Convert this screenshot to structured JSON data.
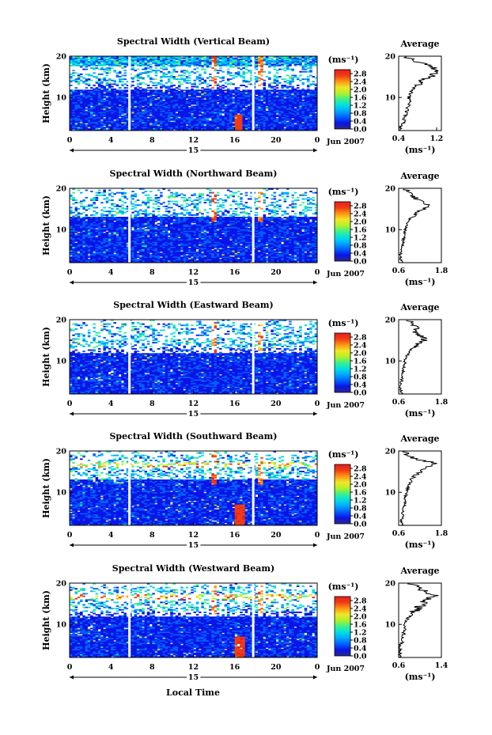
{
  "common": {
    "ylabel": "Height (km)",
    "xlabel": "Local Time",
    "date_label": "Jun 2007",
    "day_label": "15",
    "cbar_unit": "(ms⁻¹)",
    "avg_title": "Average",
    "avg_unit": "(ms⁻¹)",
    "x_ticks": [
      "0",
      "4",
      "8",
      "12",
      "16",
      "20",
      "0"
    ],
    "x_tick_values": [
      0,
      4,
      8,
      12,
      16,
      20,
      24
    ],
    "y_ticks": [
      "20",
      "10"
    ],
    "y_tick_values": [
      20,
      10
    ],
    "cbar_ticks": [
      "2.8",
      "2.4",
      "2.0",
      "1.6",
      "1.2",
      "0.8",
      "0.4",
      "0.0"
    ],
    "cbar_tick_values": [
      2.8,
      2.4,
      2.0,
      1.6,
      1.2,
      0.8,
      0.4,
      0.0
    ],
    "colormap": [
      "#2a2a8a",
      "#0a14e6",
      "#0060ff",
      "#00a8ff",
      "#00e0e0",
      "#3cf08c",
      "#b4f028",
      "#f0e628",
      "#ff9614",
      "#f03c14",
      "#e61e1e"
    ]
  },
  "chart_data": [
    {
      "type": "heatmap",
      "title": "Spectral Width (Vertical Beam)",
      "xlabel": "Local Time",
      "ylabel": "Height (km)",
      "xlim": [
        0,
        24
      ],
      "ylim": [
        2,
        20
      ],
      "clim": [
        0,
        3.0
      ],
      "data_gaps_hours": [
        5.8,
        17.8
      ],
      "features": "low widths (~0.2-0.6) below 12 km, sparse data 14-18 km, enhanced widths near 14 h and 17.5 h",
      "average": {
        "title": "Average",
        "xlim": [
          0.4,
          1.3
        ],
        "x_ticks": [
          "0.4",
          "1.2"
        ],
        "x_tick_values": [
          0.4,
          1.2
        ],
        "height_km": [
          2,
          3,
          4,
          5,
          6,
          7,
          8,
          9,
          10,
          11,
          12,
          13,
          14,
          15,
          16,
          17,
          18,
          19,
          20
        ],
        "width_ms": [
          0.45,
          0.43,
          0.5,
          0.52,
          0.55,
          0.58,
          0.6,
          0.62,
          0.62,
          0.65,
          0.7,
          0.78,
          0.9,
          1.05,
          1.2,
          1.15,
          0.95,
          0.7,
          0.55
        ]
      }
    },
    {
      "type": "heatmap",
      "title": "Spectral Width (Northward Beam)",
      "xlabel": "Local Time",
      "ylabel": "Height (km)",
      "xlim": [
        0,
        24
      ],
      "ylim": [
        2,
        20
      ],
      "clim": [
        0,
        3.0
      ],
      "data_gaps_hours": [
        5.8,
        17.8
      ],
      "features": "widths ~0.2-0.6 below 13 km, sparse layers 14-19 km, high widths near 14 h",
      "average": {
        "title": "Average",
        "xlim": [
          0.6,
          1.8
        ],
        "x_ticks": [
          "0.6",
          "1.8"
        ],
        "x_tick_values": [
          0.6,
          1.8
        ],
        "height_km": [
          2,
          3,
          4,
          5,
          6,
          7,
          8,
          9,
          10,
          11,
          12,
          13,
          14,
          15,
          16,
          17,
          18,
          19,
          20
        ],
        "width_ms": [
          0.7,
          0.65,
          0.66,
          0.68,
          0.7,
          0.72,
          0.74,
          0.76,
          0.78,
          0.82,
          0.88,
          0.95,
          1.1,
          1.3,
          1.45,
          1.2,
          1.0,
          0.85,
          0.8
        ]
      }
    },
    {
      "type": "heatmap",
      "title": "Spectral Width (Eastward Beam)",
      "xlabel": "Local Time",
      "ylabel": "Height (km)",
      "xlim": [
        0,
        24
      ],
      "ylim": [
        2,
        20
      ],
      "clim": [
        0,
        3.0
      ],
      "data_gaps_hours": [
        5.8,
        17.8
      ],
      "features": "low widths below 12 km, sparse 13-19 km, enhanced near 14 h and 17.5 h",
      "average": {
        "title": "Average",
        "xlim": [
          0.6,
          1.8
        ],
        "x_ticks": [
          "0.6",
          "1.8"
        ],
        "x_tick_values": [
          0.6,
          1.8
        ],
        "height_km": [
          2,
          3,
          4,
          5,
          6,
          7,
          8,
          9,
          10,
          11,
          12,
          13,
          14,
          15,
          16,
          17,
          18,
          19,
          20
        ],
        "width_ms": [
          0.68,
          0.66,
          0.66,
          0.68,
          0.7,
          0.72,
          0.74,
          0.76,
          0.78,
          0.82,
          0.88,
          0.98,
          1.1,
          1.35,
          1.25,
          1.0,
          1.1,
          0.95,
          0.9
        ]
      }
    },
    {
      "type": "heatmap",
      "title": "Spectral Width (Southward Beam)",
      "xlabel": "Local Time",
      "ylabel": "Height (km)",
      "xlim": [
        0,
        24
      ],
      "ylim": [
        2,
        20
      ],
      "clim": [
        0,
        3.0
      ],
      "data_gaps_hours": [
        5.8,
        17.8
      ],
      "features": "widths ~0.2-0.6 below 13 km, layered echoes 14-19 km, high widths near 14 h and 16.5 h low altitude",
      "average": {
        "title": "Average",
        "xlim": [
          0.6,
          1.8
        ],
        "x_ticks": [
          "0.6",
          "1.8"
        ],
        "x_tick_values": [
          0.6,
          1.8
        ],
        "height_km": [
          2,
          3,
          4,
          5,
          6,
          7,
          8,
          9,
          10,
          11,
          12,
          13,
          14,
          15,
          16,
          17,
          18,
          19,
          20
        ],
        "width_ms": [
          0.72,
          0.68,
          0.7,
          0.72,
          0.74,
          0.76,
          0.78,
          0.8,
          0.82,
          0.86,
          0.9,
          0.98,
          1.05,
          1.2,
          1.35,
          1.7,
          1.1,
          0.85,
          0.78
        ]
      }
    },
    {
      "type": "heatmap",
      "title": "Spectral Width (Westward Beam)",
      "xlabel": "Local Time",
      "ylabel": "Height (km)",
      "xlim": [
        0,
        24
      ],
      "ylim": [
        2,
        20
      ],
      "clim": [
        0,
        3.0
      ],
      "data_gaps_hours": [
        5.8,
        17.8
      ],
      "features": "low widths below 12 km, strong layer near 17 km, enhanced near 14 h and 16.5 h low altitude",
      "average": {
        "title": "Average",
        "xlim": [
          0.6,
          1.4
        ],
        "x_ticks": [
          "0.6",
          "1.4"
        ],
        "x_tick_values": [
          0.6,
          1.4
        ],
        "height_km": [
          2,
          3,
          4,
          5,
          6,
          7,
          8,
          9,
          10,
          11,
          12,
          13,
          14,
          15,
          16,
          17,
          18,
          19,
          20
        ],
        "width_ms": [
          0.65,
          0.62,
          0.63,
          0.64,
          0.66,
          0.68,
          0.7,
          0.71,
          0.72,
          0.75,
          0.8,
          0.88,
          0.96,
          1.05,
          1.15,
          1.25,
          1.1,
          0.92,
          0.85
        ]
      }
    }
  ]
}
